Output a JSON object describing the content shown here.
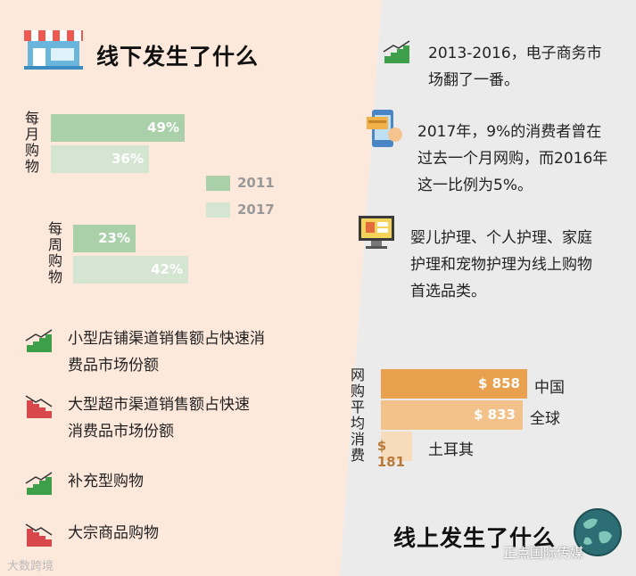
{
  "left_title": "线下发生了什么",
  "right_title": "线上发生了什么",
  "offline_chart": {
    "groups": [
      {
        "label": "每月购物",
        "label_chars": [
          "每",
          "月",
          "购",
          "物"
        ]
      },
      {
        "label": "每周购物",
        "label_chars": [
          "每",
          "周",
          "购",
          "物"
        ]
      }
    ],
    "legend": [
      "2011",
      "2017"
    ],
    "colors": {
      "2011": "#a9d0a9",
      "2017": "#d4e6d1"
    }
  },
  "chart_data": [
    {
      "type": "bar",
      "orientation": "horizontal",
      "title": "",
      "categories": [
        "每月购物",
        "每周购物"
      ],
      "series": [
        {
          "name": "2011",
          "values": [
            49,
            23
          ],
          "labels": [
            "49%",
            "23%"
          ]
        },
        {
          "name": "2017",
          "values": [
            36,
            42
          ],
          "labels": [
            "36%",
            "42%"
          ]
        }
      ],
      "unit": "%",
      "legend": "right"
    },
    {
      "type": "bar",
      "orientation": "horizontal",
      "title": "",
      "ylabel": "网购平均消费",
      "categories": [
        "中国",
        "全球",
        "土耳其"
      ],
      "values": [
        858,
        833,
        181
      ],
      "labels": [
        "$ 858",
        "$ 833",
        "$ 181"
      ]
    }
  ],
  "left_items": [
    {
      "icon": "trend-up-icon",
      "lines": [
        "小型店铺渠道销售额占快速消",
        "费品市场份额"
      ]
    },
    {
      "icon": "trend-down-icon",
      "lines": [
        "大型超市渠道销售额占快速",
        "消费品市场份额"
      ]
    },
    {
      "icon": "trend-up-icon",
      "lines": [
        "补充型购物"
      ]
    },
    {
      "icon": "trend-down-icon",
      "lines": [
        "大宗商品购物"
      ]
    }
  ],
  "right_items": [
    {
      "icon": "trend-up-icon",
      "lines": [
        "2013-2016，电子商务市",
        "场翻了一番。"
      ]
    },
    {
      "icon": "mobile-payment-icon",
      "lines": [
        "2017年，9%的消费者曾在",
        "过去一个月网购，而2016年",
        "这一比例为5%。"
      ]
    },
    {
      "icon": "online-store-icon",
      "lines": [
        "婴儿护理、个人护理、家庭",
        "护理和宠物护理为线上购物",
        "首选品类。"
      ]
    }
  ],
  "spend_chart": {
    "axis_chars": [
      "网",
      "购",
      "平",
      "均",
      "消",
      "费"
    ],
    "colors": [
      "#e9a04f",
      "#f3c18a",
      "#f7dcbc"
    ],
    "value_color_last": "#b87a3a"
  },
  "watermark_left": "大数跨境",
  "watermark_right": "正点国际传媒",
  "colors": {
    "left_bg": "#fde8dc",
    "right_bg": "#ebebec",
    "up_green": "#3e9f4a",
    "down_red": "#d7474b"
  }
}
